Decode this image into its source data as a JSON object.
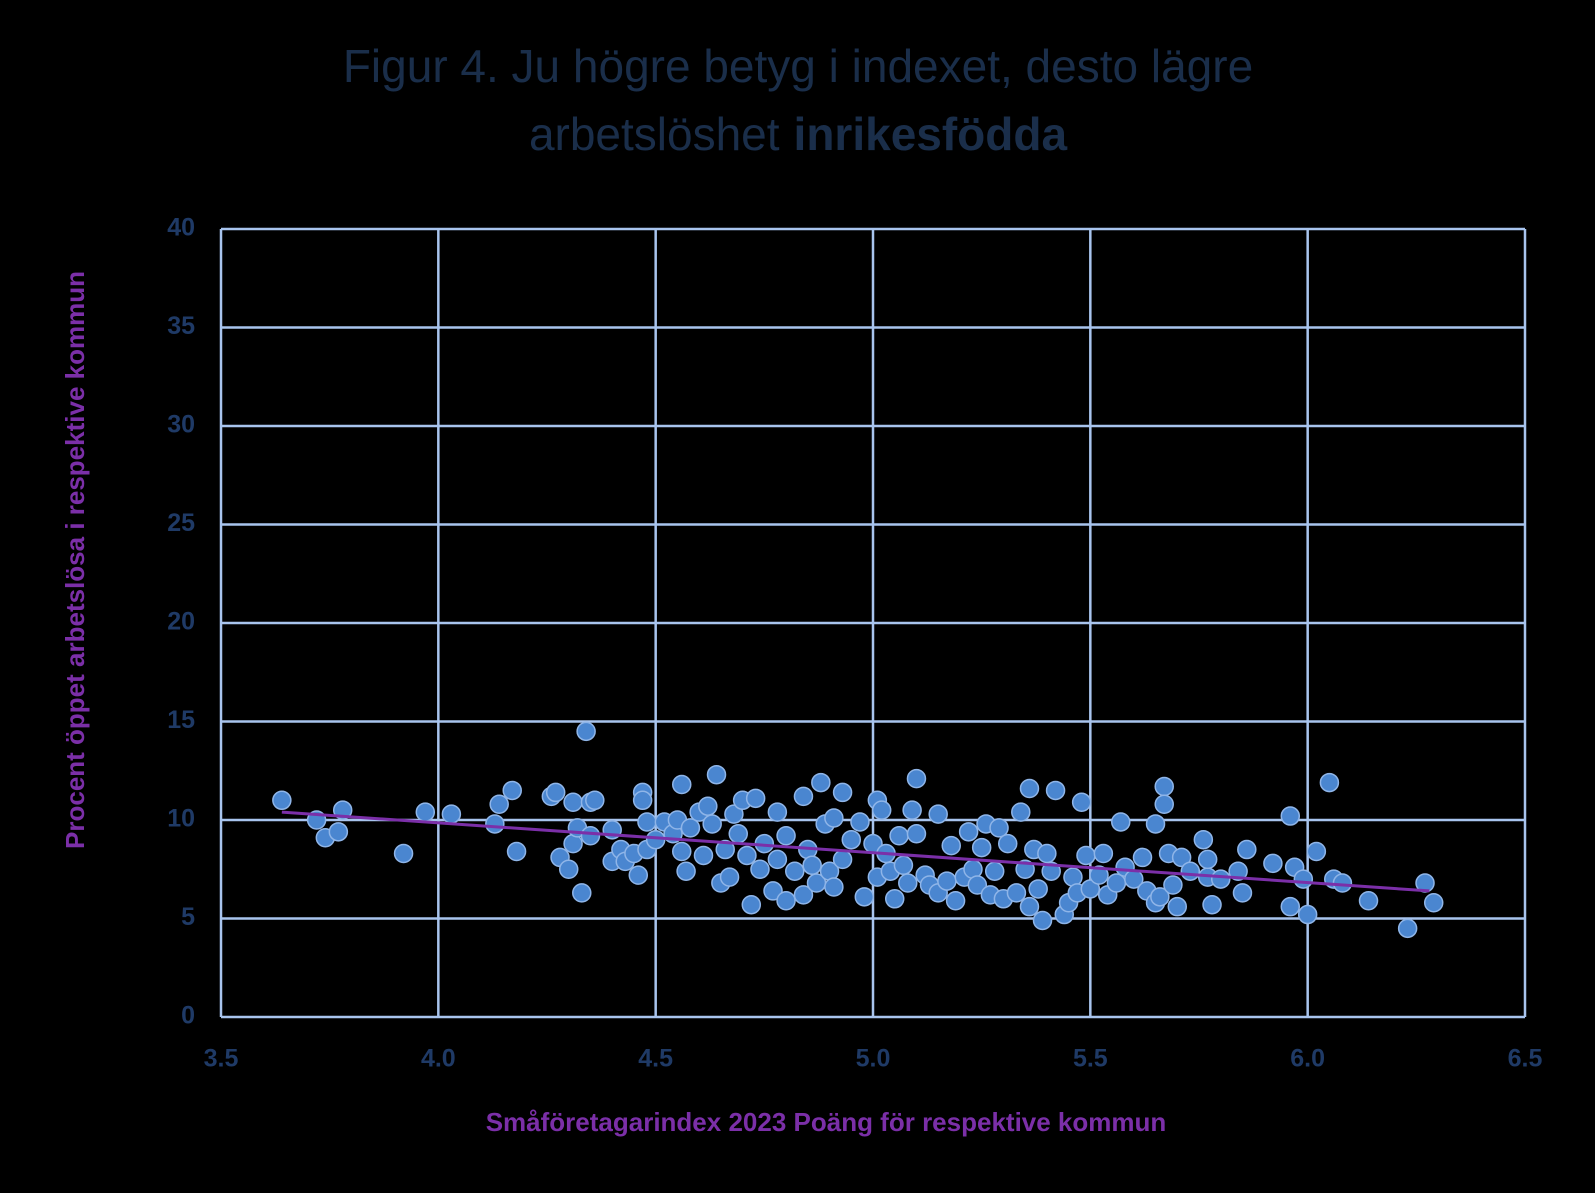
{
  "chart_data": {
    "type": "scatter",
    "title": {
      "line1": "Figur 4. Ju högre betyg i indexet, desto lägre",
      "line2": "arbetslöshet",
      "line2_bold": "inrikesfödda"
    },
    "xlabel": "Småföretagarindex 2023 Poäng för respektive kommun",
    "ylabel": "Procent öppet arbetslösa i respektive kommun",
    "xlim": [
      3.5,
      6.5
    ],
    "ylim": [
      0,
      40
    ],
    "xticks": [
      3.5,
      {
        "value": 4,
        "label": "4.0"
      },
      4.5,
      {
        "value": 5,
        "label": "5.0"
      },
      5.5,
      {
        "value": 6,
        "label": "6.0"
      },
      6.5
    ],
    "yticks": [
      0,
      5,
      10,
      15,
      20,
      25,
      30,
      35,
      40
    ],
    "grid": true,
    "color": "#4a86d0",
    "x": [
      3.64,
      3.72,
      3.74,
      3.77,
      3.78,
      3.92,
      3.97,
      4.03,
      4.13,
      4.14,
      4.17,
      4.18,
      4.26,
      4.27,
      4.28,
      4.3,
      4.31,
      4.31,
      4.32,
      4.33,
      4.34,
      4.35,
      4.35,
      4.36,
      4.4,
      4.4,
      4.42,
      4.43,
      4.45,
      4.46,
      4.47,
      4.47,
      4.48,
      4.48,
      4.5,
      4.52,
      4.54,
      4.55,
      4.56,
      4.56,
      4.57,
      4.58,
      4.6,
      4.61,
      4.62,
      4.63,
      4.64,
      4.65,
      4.66,
      4.67,
      4.68,
      4.69,
      4.7,
      4.71,
      4.72,
      4.73,
      4.74,
      4.75,
      4.77,
      4.78,
      4.78,
      4.8,
      4.8,
      4.82,
      4.84,
      4.84,
      4.85,
      4.86,
      4.87,
      4.88,
      4.89,
      4.9,
      4.91,
      4.91,
      4.93,
      4.93,
      4.95,
      4.97,
      4.98,
      5.0,
      5.01,
      5.01,
      5.02,
      5.03,
      5.04,
      5.05,
      5.06,
      5.07,
      5.08,
      5.09,
      5.1,
      5.1,
      5.12,
      5.13,
      5.15,
      5.15,
      5.17,
      5.18,
      5.19,
      5.21,
      5.22,
      5.23,
      5.24,
      5.25,
      5.26,
      5.27,
      5.28,
      5.29,
      5.3,
      5.31,
      5.33,
      5.34,
      5.35,
      5.36,
      5.36,
      5.37,
      5.38,
      5.39,
      5.4,
      5.41,
      5.42,
      5.44,
      5.45,
      5.46,
      5.47,
      5.48,
      5.49,
      5.5,
      5.52,
      5.53,
      5.54,
      5.56,
      5.57,
      5.58,
      5.6,
      5.62,
      5.63,
      5.65,
      5.65,
      5.66,
      5.67,
      5.67,
      5.68,
      5.69,
      5.7,
      5.71,
      5.73,
      5.76,
      5.77,
      5.78,
      5.77,
      5.8,
      5.84,
      5.85,
      5.86,
      5.92,
      5.96,
      5.96,
      5.97,
      5.99,
      6.0,
      6.02,
      6.05,
      6.06,
      6.08,
      6.14,
      6.23,
      6.27,
      6.29
    ],
    "values": [
      11.0,
      10.0,
      9.1,
      9.4,
      10.5,
      8.3,
      10.4,
      10.3,
      9.8,
      10.8,
      11.5,
      8.4,
      11.2,
      11.4,
      8.1,
      7.5,
      10.9,
      8.8,
      9.6,
      6.3,
      14.5,
      9.2,
      10.9,
      11.0,
      7.9,
      9.5,
      8.5,
      7.9,
      8.3,
      7.2,
      11.4,
      11.0,
      9.9,
      8.5,
      9.0,
      9.9,
      9.3,
      10.0,
      11.8,
      8.4,
      7.4,
      9.6,
      10.4,
      8.2,
      10.7,
      9.8,
      12.3,
      6.8,
      8.5,
      7.1,
      10.3,
      9.3,
      11.0,
      8.2,
      5.7,
      11.1,
      7.5,
      8.8,
      6.4,
      10.4,
      8.0,
      5.9,
      9.2,
      7.4,
      11.2,
      6.2,
      8.5,
      7.7,
      6.8,
      11.9,
      9.8,
      7.4,
      10.1,
      6.6,
      11.4,
      8.0,
      9.0,
      9.9,
      6.1,
      8.8,
      11.0,
      7.1,
      10.5,
      8.3,
      7.4,
      6.0,
      9.2,
      7.7,
      6.8,
      10.5,
      12.1,
      9.3,
      7.2,
      6.7,
      10.3,
      6.3,
      6.9,
      8.7,
      5.9,
      7.1,
      9.4,
      7.5,
      6.7,
      8.6,
      9.8,
      6.2,
      7.4,
      9.6,
      6.0,
      8.8,
      6.3,
      10.4,
      7.5,
      11.6,
      5.6,
      8.5,
      6.5,
      4.9,
      8.3,
      7.4,
      11.5,
      5.2,
      5.8,
      7.1,
      6.3,
      10.9,
      8.2,
      6.5,
      7.2,
      8.3,
      6.2,
      6.8,
      9.9,
      7.6,
      7.0,
      8.1,
      6.4,
      9.8,
      5.8,
      6.1,
      11.7,
      10.8,
      8.3,
      6.7,
      5.6,
      8.1,
      7.4,
      9.0,
      7.1,
      5.7,
      8.0,
      7.0,
      7.4,
      6.3,
      8.5,
      7.8,
      10.2,
      5.6,
      7.6,
      7.0,
      5.2,
      8.4,
      11.9,
      7.0,
      6.8,
      5.9,
      4.5,
      6.8,
      5.8
    ],
    "trendline": {
      "x": [
        3.64,
        6.28
      ],
      "y": [
        10.4,
        6.4
      ],
      "color": "#7b2fa8"
    }
  }
}
